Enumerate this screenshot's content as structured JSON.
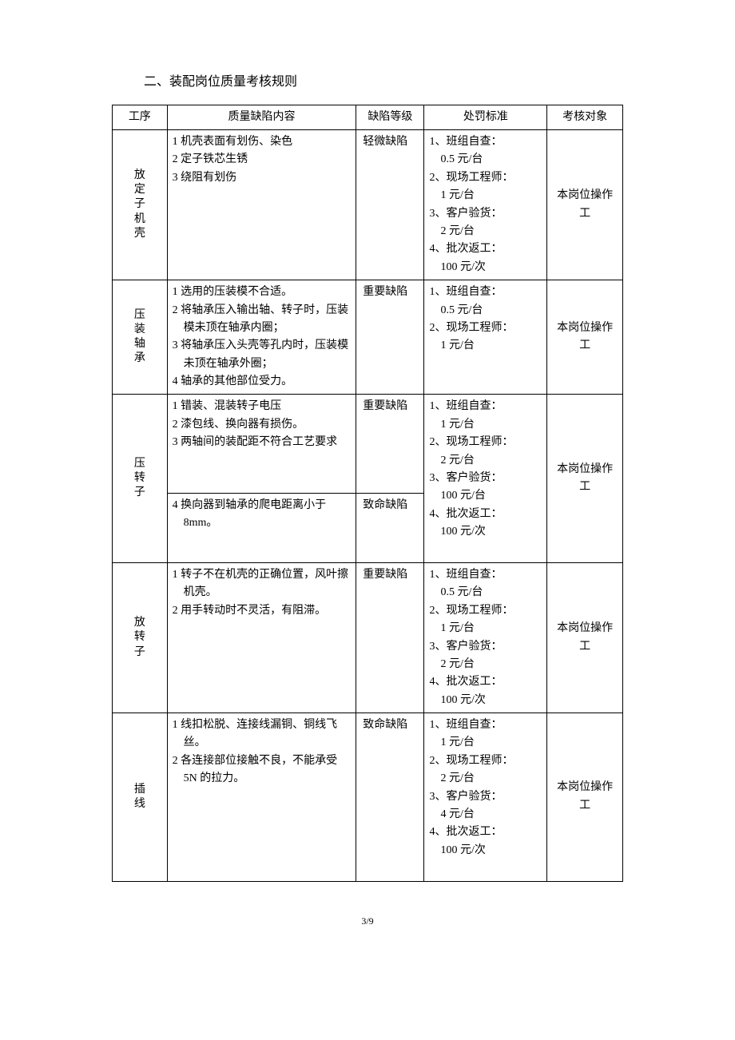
{
  "title": "二、装配岗位质量考核规则",
  "headers": {
    "process": "工序",
    "defect": "质量缺陷内容",
    "level": "缺陷等级",
    "penalty": "处罚标准",
    "target": "考核对象"
  },
  "rows": [
    {
      "process": "放定子机壳",
      "process_chars": [
        "放",
        "定",
        "子",
        "机",
        "壳"
      ],
      "defects": [
        "1 机壳表面有划伤、染色",
        "2 定子铁芯生锈",
        "3 绕阻有划伤"
      ],
      "levels": [
        "轻微缺陷"
      ],
      "penalties": [
        "1、班组自查：",
        "　0.5 元/台",
        "2、现场工程师：",
        "　1 元/台",
        "3、客户验货：",
        "　2 元/台",
        "4、批次返工：",
        "　100 元/次"
      ],
      "target": "本岗位操作工"
    },
    {
      "process": "压装轴承",
      "process_chars": [
        "压",
        "装",
        "轴",
        "承"
      ],
      "defects": [
        "1 选用的压装模不合适。",
        "2 将轴承压入输出轴、转子时，压装模未顶在轴承内圈；",
        "3 将轴承压入头壳等孔内时，压装模未顶在轴承外圈；",
        "4 轴承的其他部位受力。"
      ],
      "levels": [
        "重要缺陷"
      ],
      "penalties": [
        "1、班组自查：",
        "　0.5 元/台",
        "2、现场工程师：",
        "　1 元/台"
      ],
      "target": "本岗位操作工"
    },
    {
      "process": "压转子",
      "process_chars": [
        "压",
        "转",
        "子"
      ],
      "defects_split": [
        {
          "lines": [
            "1 错装、混装转子电压",
            "2 漆包线、换向器有损伤。",
            "3 两轴间的装配距不符合工艺要求"
          ],
          "level": "重要缺陷"
        },
        {
          "lines": [
            "4 换向器到轴承的爬电距离小于 8mm。"
          ],
          "level": "致命缺陷"
        }
      ],
      "penalties": [
        "1、班组自查：",
        "　1 元/台",
        "2、现场工程师：",
        "　2 元/台",
        "3、客户验货：",
        "　100 元/台",
        "4、批次返工：",
        "　100 元/次"
      ],
      "target": "本岗位操作工"
    },
    {
      "process": "放转子",
      "process_chars": [
        "放",
        "转",
        "子"
      ],
      "defects": [
        "1 转子不在机壳的正确位置，风叶擦机壳。",
        "2 用手转动时不灵活，有阻滞。"
      ],
      "levels": [
        "重要缺陷"
      ],
      "penalties": [
        "1、班组自查：",
        "　0.5 元/台",
        "2、现场工程师：",
        "　1 元/台",
        "3、客户验货：",
        "　2 元/台",
        "4、批次返工：",
        "　100 元/次"
      ],
      "target": "本岗位操作工"
    },
    {
      "process": "插线",
      "process_chars": [
        "插",
        "线"
      ],
      "defects": [
        "1 线扣松脱、连接线漏铜、铜线飞丝。",
        "2 各连接部位接触不良，不能承受 5N 的拉力。"
      ],
      "levels": [
        "致命缺陷"
      ],
      "penalties": [
        "1、班组自查：",
        "　1 元/台",
        "2、现场工程师：",
        "　2 元/台",
        "3、客户验货：",
        "　4 元/台",
        "4、批次返工：",
        "　100 元/次"
      ],
      "target": "本岗位操作工"
    }
  ],
  "page_num": "3/9"
}
